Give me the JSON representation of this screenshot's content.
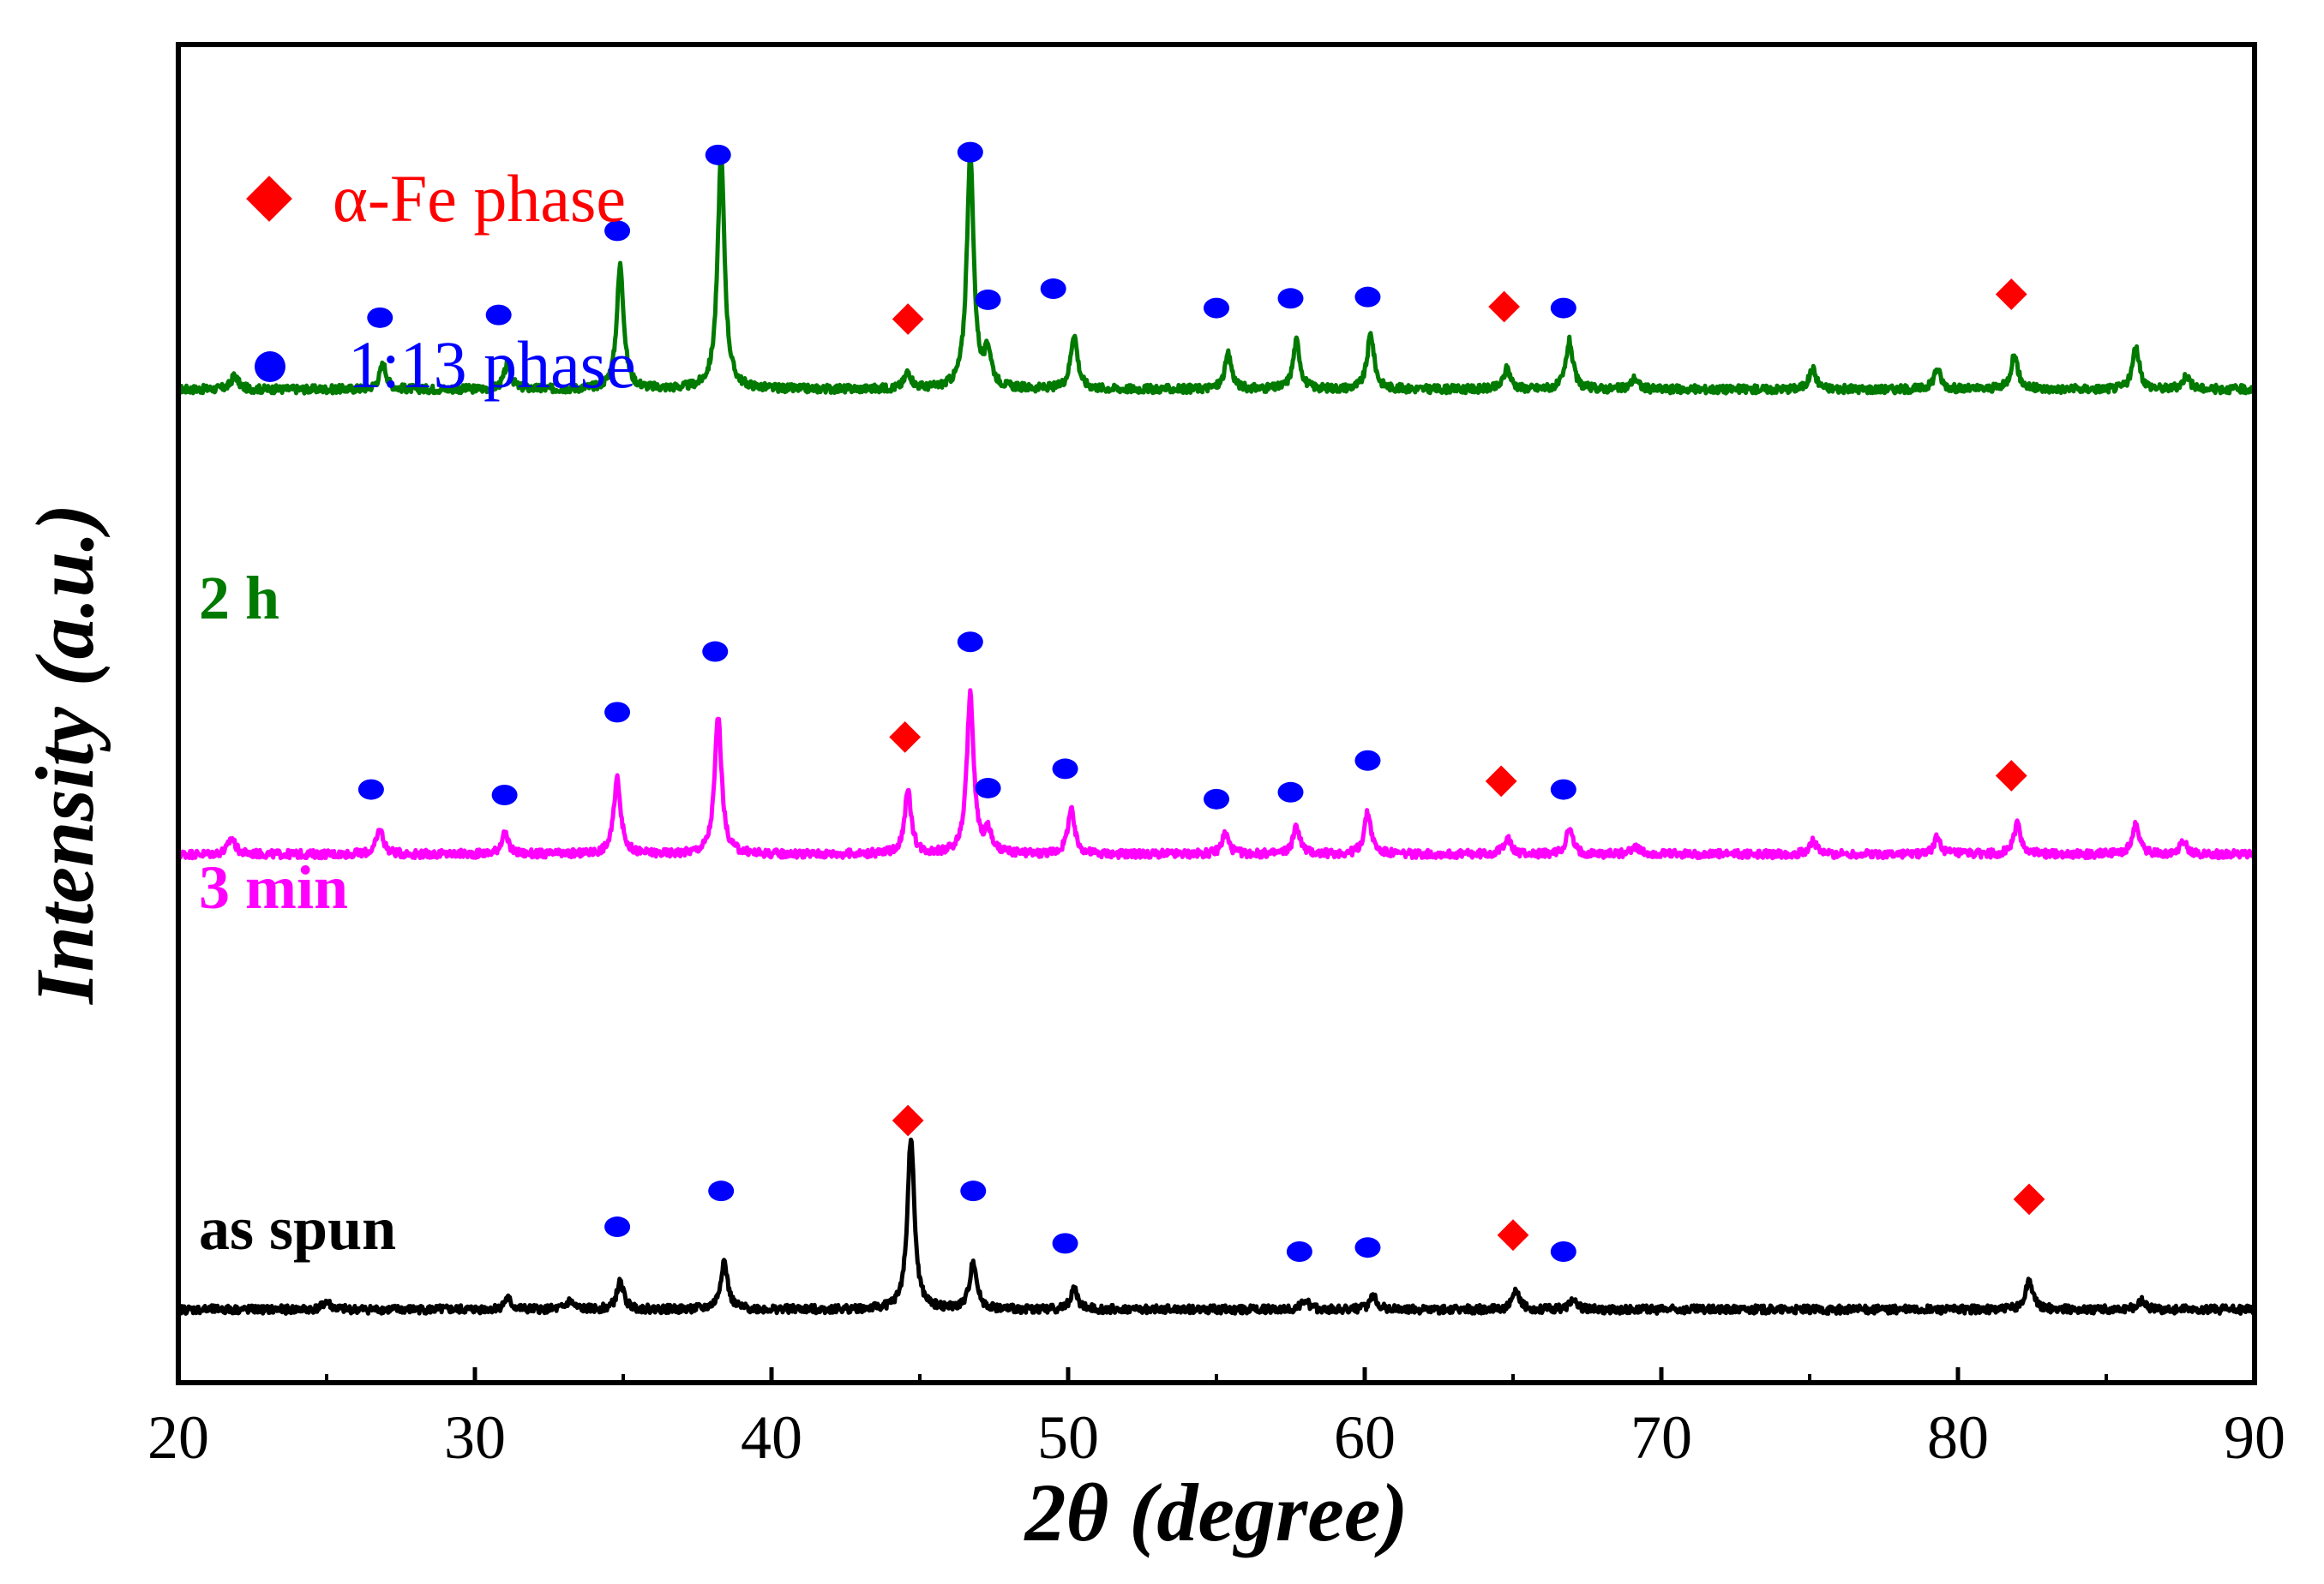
{
  "chart_data": {
    "type": "line",
    "title": "",
    "xlabel": "2θ (degree)",
    "ylabel": "Intensity (a.u.)",
    "xlim": [
      20,
      90
    ],
    "xticks": [
      20,
      30,
      40,
      50,
      60,
      70,
      80,
      90
    ],
    "legend": [
      {
        "label": "α-Fe phase",
        "marker": "diamond",
        "color": "#ff0000"
      },
      {
        "label": "1:13 phase",
        "marker": "circle",
        "color": "#0000ff"
      }
    ],
    "series": [
      {
        "name": "2 h",
        "color": "#007a00",
        "baseline": 0.0,
        "peaks": [
          {
            "x": 21.9,
            "h": 0.01
          },
          {
            "x": 26.9,
            "h": 0.018
          },
          {
            "x": 31.1,
            "h": 0.018
          },
          {
            "x": 34.9,
            "h": 0.09
          },
          {
            "x": 38.3,
            "h": 0.17
          },
          {
            "x": 44.6,
            "h": 0.012
          },
          {
            "x": 46.7,
            "h": 0.17
          },
          {
            "x": 47.3,
            "h": 0.025
          },
          {
            "x": 50.2,
            "h": 0.04
          },
          {
            "x": 55.4,
            "h": 0.025
          },
          {
            "x": 57.7,
            "h": 0.035
          },
          {
            "x": 60.2,
            "h": 0.04
          },
          {
            "x": 64.8,
            "h": 0.015
          },
          {
            "x": 66.9,
            "h": 0.035
          },
          {
            "x": 69.1,
            "h": 0.008
          },
          {
            "x": 75.1,
            "h": 0.015
          },
          {
            "x": 79.3,
            "h": 0.015
          },
          {
            "x": 81.9,
            "h": 0.025
          },
          {
            "x": 86.0,
            "h": 0.03
          },
          {
            "x": 87.7,
            "h": 0.01
          }
        ],
        "markers": [
          {
            "type": "circle",
            "x": 26.8,
            "y": 0.052
          },
          {
            "type": "circle",
            "x": 30.8,
            "y": 0.054
          },
          {
            "type": "circle",
            "x": 34.8,
            "y": 0.115
          },
          {
            "type": "circle",
            "x": 38.2,
            "y": 0.17
          },
          {
            "type": "diamond",
            "x": 44.6,
            "y": 0.051
          },
          {
            "type": "circle",
            "x": 46.7,
            "y": 0.172
          },
          {
            "type": "circle",
            "x": 47.3,
            "y": 0.065
          },
          {
            "type": "circle",
            "x": 49.5,
            "y": 0.073
          },
          {
            "type": "circle",
            "x": 55.0,
            "y": 0.059
          },
          {
            "type": "circle",
            "x": 57.5,
            "y": 0.066
          },
          {
            "type": "circle",
            "x": 60.1,
            "y": 0.067
          },
          {
            "type": "diamond",
            "x": 64.7,
            "y": 0.06
          },
          {
            "type": "circle",
            "x": 66.7,
            "y": 0.059
          },
          {
            "type": "diamond",
            "x": 81.8,
            "y": 0.069
          }
        ]
      },
      {
        "name": "3 min",
        "color": "#ff00ff",
        "baseline": -0.337,
        "peaks": [
          {
            "x": 21.8,
            "h": 0.012
          },
          {
            "x": 26.8,
            "h": 0.018
          },
          {
            "x": 31.0,
            "h": 0.015
          },
          {
            "x": 34.8,
            "h": 0.055
          },
          {
            "x": 38.2,
            "h": 0.1
          },
          {
            "x": 44.6,
            "h": 0.045
          },
          {
            "x": 46.7,
            "h": 0.115
          },
          {
            "x": 47.3,
            "h": 0.015
          },
          {
            "x": 50.1,
            "h": 0.032
          },
          {
            "x": 55.3,
            "h": 0.015
          },
          {
            "x": 57.7,
            "h": 0.02
          },
          {
            "x": 60.1,
            "h": 0.03
          },
          {
            "x": 64.8,
            "h": 0.012
          },
          {
            "x": 66.9,
            "h": 0.018
          },
          {
            "x": 69.1,
            "h": 0.006
          },
          {
            "x": 75.1,
            "h": 0.01
          },
          {
            "x": 79.3,
            "h": 0.012
          },
          {
            "x": 82.0,
            "h": 0.022
          },
          {
            "x": 86.0,
            "h": 0.022
          },
          {
            "x": 87.6,
            "h": 0.01
          }
        ],
        "markers": [
          {
            "type": "circle",
            "x": 26.5,
            "y": -0.29
          },
          {
            "type": "circle",
            "x": 31.0,
            "y": -0.294
          },
          {
            "type": "circle",
            "x": 34.8,
            "y": -0.234
          },
          {
            "type": "circle",
            "x": 38.1,
            "y": -0.19
          },
          {
            "type": "diamond",
            "x": 44.5,
            "y": -0.252
          },
          {
            "type": "circle",
            "x": 46.7,
            "y": -0.183
          },
          {
            "type": "circle",
            "x": 47.3,
            "y": -0.289
          },
          {
            "type": "circle",
            "x": 49.9,
            "y": -0.275
          },
          {
            "type": "circle",
            "x": 55.0,
            "y": -0.297
          },
          {
            "type": "circle",
            "x": 57.5,
            "y": -0.292
          },
          {
            "type": "circle",
            "x": 60.1,
            "y": -0.269
          },
          {
            "type": "diamond",
            "x": 64.6,
            "y": -0.284
          },
          {
            "type": "circle",
            "x": 66.7,
            "y": -0.29
          },
          {
            "type": "diamond",
            "x": 81.8,
            "y": -0.28
          }
        ]
      },
      {
        "name": "as spun",
        "color": "#000000",
        "baseline": -0.667,
        "peaks": [
          {
            "x": 25.0,
            "h": 0.006
          },
          {
            "x": 31.1,
            "h": 0.008
          },
          {
            "x": 33.2,
            "h": 0.006
          },
          {
            "x": 34.9,
            "h": 0.02
          },
          {
            "x": 38.4,
            "h": 0.035
          },
          {
            "x": 44.7,
            "h": 0.125
          },
          {
            "x": 46.8,
            "h": 0.035
          },
          {
            "x": 50.2,
            "h": 0.015
          },
          {
            "x": 58.0,
            "h": 0.007
          },
          {
            "x": 60.3,
            "h": 0.01
          },
          {
            "x": 65.1,
            "h": 0.013
          },
          {
            "x": 67.0,
            "h": 0.007
          },
          {
            "x": 82.4,
            "h": 0.022
          },
          {
            "x": 86.2,
            "h": 0.007
          }
        ],
        "markers": [
          {
            "type": "circle",
            "x": 34.8,
            "y": -0.607
          },
          {
            "type": "circle",
            "x": 38.3,
            "y": -0.581
          },
          {
            "type": "diamond",
            "x": 44.6,
            "y": -0.53
          },
          {
            "type": "circle",
            "x": 46.8,
            "y": -0.581
          },
          {
            "type": "circle",
            "x": 49.9,
            "y": -0.619
          },
          {
            "type": "circle",
            "x": 57.8,
            "y": -0.625
          },
          {
            "type": "circle",
            "x": 60.1,
            "y": -0.622
          },
          {
            "type": "diamond",
            "x": 65.0,
            "y": -0.613
          },
          {
            "type": "circle",
            "x": 66.7,
            "y": -0.625
          },
          {
            "type": "diamond",
            "x": 82.4,
            "y": -0.587
          }
        ]
      }
    ]
  }
}
